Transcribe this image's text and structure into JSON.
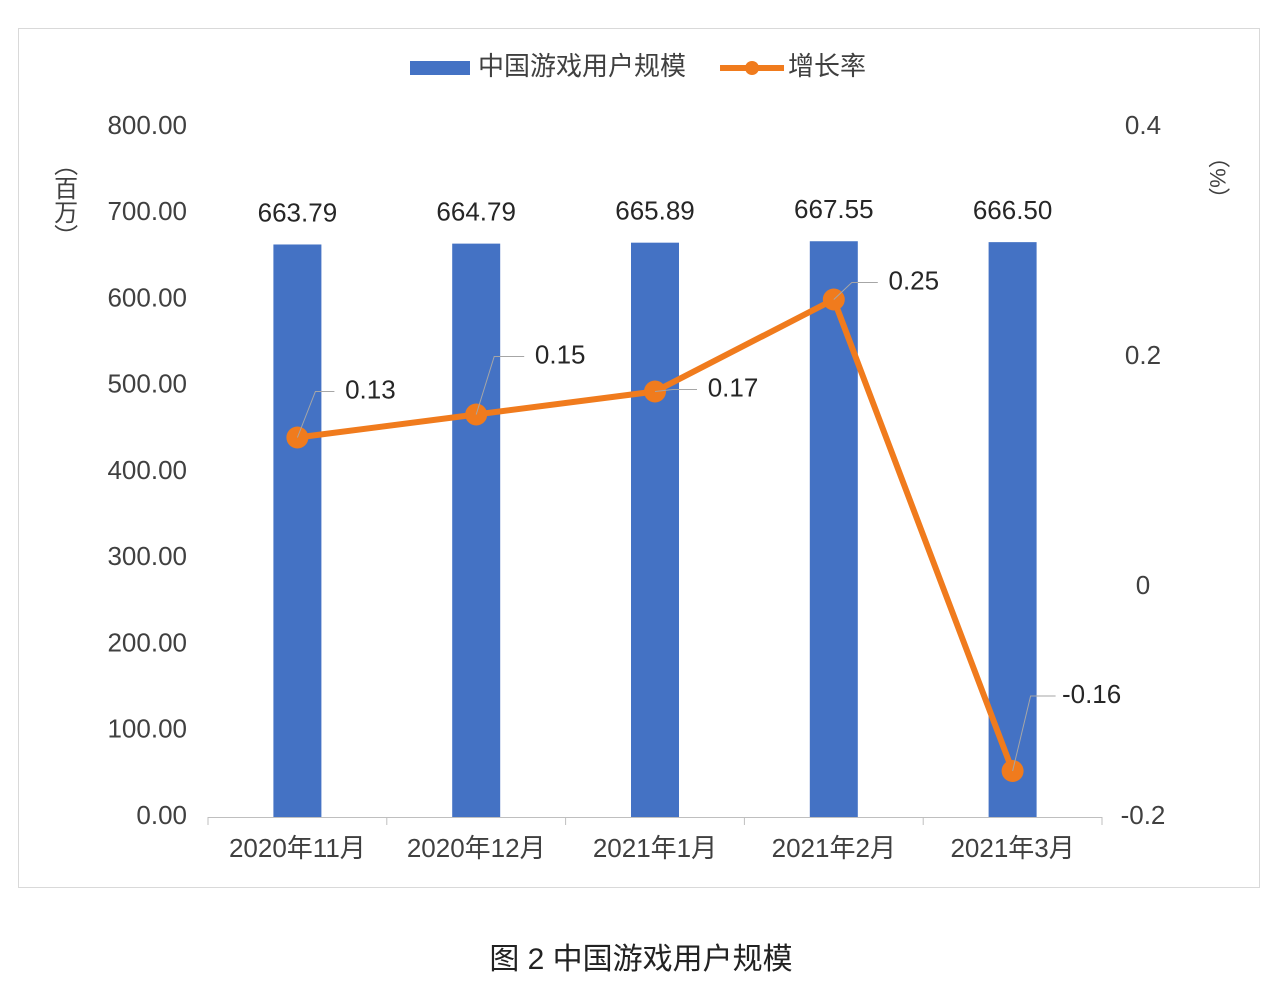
{
  "chart_data": {
    "type": "bar",
    "legend_position": "top",
    "grid": false,
    "categories": [
      "2020年11月",
      "2020年12月",
      "2021年1月",
      "2021年2月",
      "2021年3月"
    ],
    "series": [
      {
        "name": "中国游戏用户规模",
        "type": "bar",
        "color": "#4472c4",
        "values": [
          663.79,
          664.79,
          665.89,
          667.55,
          666.5
        ],
        "value_labels": [
          "663.79",
          "664.79",
          "665.89",
          "667.55",
          "666.50"
        ]
      },
      {
        "name": "增长率",
        "type": "line",
        "axis": "y2",
        "color": "#f07b1d",
        "values": [
          0.13,
          0.15,
          0.17,
          0.25,
          -0.16
        ]
      }
    ],
    "y_label": "（百万）",
    "y2_label": "（%）",
    "ylim": [
      0,
      800
    ],
    "yticks": [
      {
        "value": 0,
        "label": "0.00"
      },
      {
        "value": 100,
        "label": "100.00"
      },
      {
        "value": 200,
        "label": "200.00"
      },
      {
        "value": 300,
        "label": "300.00"
      },
      {
        "value": 400,
        "label": "400.00"
      },
      {
        "value": 500,
        "label": "500.00"
      },
      {
        "value": 600,
        "label": "600.00"
      },
      {
        "value": 700,
        "label": "700.00"
      },
      {
        "value": 800,
        "label": "800.00"
      }
    ],
    "y2lim": [
      -0.2,
      0.4
    ],
    "y2ticks": [
      -0.2,
      0,
      0.2,
      0.4
    ],
    "caption": "图 2 中国游戏用户规模"
  }
}
